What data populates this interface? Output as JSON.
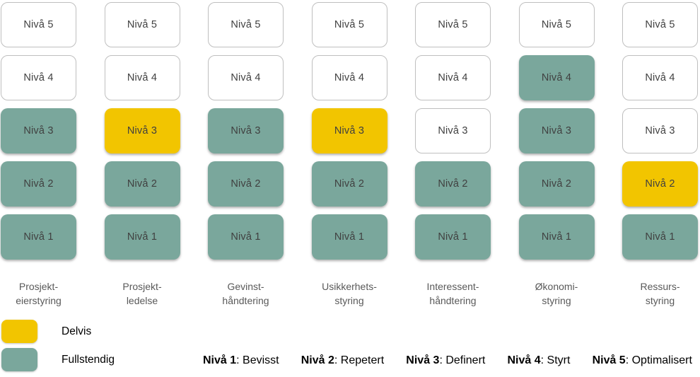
{
  "colors": {
    "delvis": "#F2C500",
    "fullstendig": "#7AA79C",
    "empty_box_border": "#BFBFBF",
    "box_text": "#404040",
    "column_label_text": "#595959"
  },
  "columns": [
    {
      "label_line1": "Prosjekt-",
      "label_line2": "eierstyring",
      "levels": [
        {
          "label": "Nivå 5",
          "status": "none"
        },
        {
          "label": "Nivå 4",
          "status": "none"
        },
        {
          "label": "Nivå 3",
          "status": "fullstendig"
        },
        {
          "label": "Nivå 2",
          "status": "fullstendig"
        },
        {
          "label": "Nivå 1",
          "status": "fullstendig"
        }
      ]
    },
    {
      "label_line1": "Prosjekt-",
      "label_line2": "ledelse",
      "levels": [
        {
          "label": "Nivå 5",
          "status": "none"
        },
        {
          "label": "Nivå 4",
          "status": "none"
        },
        {
          "label": "Nivå 3",
          "status": "delvis"
        },
        {
          "label": "Nivå 2",
          "status": "fullstendig"
        },
        {
          "label": "Nivå 1",
          "status": "fullstendig"
        }
      ]
    },
    {
      "label_line1": "Gevinst-",
      "label_line2": "håndtering",
      "levels": [
        {
          "label": "Nivå 5",
          "status": "none"
        },
        {
          "label": "Nivå 4",
          "status": "none"
        },
        {
          "label": "Nivå 3",
          "status": "fullstendig"
        },
        {
          "label": "Nivå 2",
          "status": "fullstendig"
        },
        {
          "label": "Nivå 1",
          "status": "fullstendig"
        }
      ]
    },
    {
      "label_line1": "Usikkerhets-",
      "label_line2": "styring",
      "levels": [
        {
          "label": "Nivå 5",
          "status": "none"
        },
        {
          "label": "Nivå 4",
          "status": "none"
        },
        {
          "label": "Nivå 3",
          "status": "delvis"
        },
        {
          "label": "Nivå 2",
          "status": "fullstendig"
        },
        {
          "label": "Nivå 1",
          "status": "fullstendig"
        }
      ]
    },
    {
      "label_line1": "Interessent-",
      "label_line2": "håndtering",
      "levels": [
        {
          "label": "Nivå 5",
          "status": "none"
        },
        {
          "label": "Nivå 4",
          "status": "none"
        },
        {
          "label": "Nivå 3",
          "status": "none"
        },
        {
          "label": "Nivå 2",
          "status": "fullstendig"
        },
        {
          "label": "Nivå 1",
          "status": "fullstendig"
        }
      ]
    },
    {
      "label_line1": "Økonomi-",
      "label_line2": "styring",
      "levels": [
        {
          "label": "Nivå 5",
          "status": "none"
        },
        {
          "label": "Nivå 4",
          "status": "fullstendig"
        },
        {
          "label": "Nivå 3",
          "status": "fullstendig"
        },
        {
          "label": "Nivå 2",
          "status": "fullstendig"
        },
        {
          "label": "Nivå 1",
          "status": "fullstendig"
        }
      ]
    },
    {
      "label_line1": "Ressurs-",
      "label_line2": "styring",
      "levels": [
        {
          "label": "Nivå 5",
          "status": "none"
        },
        {
          "label": "Nivå 4",
          "status": "none"
        },
        {
          "label": "Nivå 3",
          "status": "none"
        },
        {
          "label": "Nivå 2",
          "status": "delvis"
        },
        {
          "label": "Nivå 1",
          "status": "fullstendig"
        }
      ]
    }
  ],
  "legend": {
    "items": [
      {
        "label": "Delvis",
        "color": "#F2C500",
        "status": "delvis"
      },
      {
        "label": "Fullstendig",
        "color": "#7AA79C",
        "status": "fullstendig"
      }
    ]
  },
  "level_definitions": [
    {
      "level": "Nivå 1",
      "rest": ": Bevisst"
    },
    {
      "level": "Nivå 2",
      "rest": ": Repetert"
    },
    {
      "level": "Nivå 3",
      "rest": ": Definert"
    },
    {
      "level": "Nivå 4",
      "rest": ": Styrt"
    },
    {
      "level": "Nivå 5",
      "rest": ": Optimalisert"
    }
  ],
  "chart_data": {
    "type": "heatmap",
    "title": "",
    "categories": [
      "Prosjekteierstyring",
      "Prosjektledelse",
      "Gevinsthåndtering",
      "Usikkerhetsstyring",
      "Interessenthåndtering",
      "Økonomistyring",
      "Ressursstyring"
    ],
    "levels": [
      "Nivå 1",
      "Nivå 2",
      "Nivå 3",
      "Nivå 4",
      "Nivå 5"
    ],
    "level_names": {
      "Nivå 1": "Bevisst",
      "Nivå 2": "Repetert",
      "Nivå 3": "Definert",
      "Nivå 4": "Styrt",
      "Nivå 5": "Optimalisert"
    },
    "status_by_category_levels_1_to_5": {
      "Prosjekteierstyring": [
        "fullstendig",
        "fullstendig",
        "fullstendig",
        "none",
        "none"
      ],
      "Prosjektledelse": [
        "fullstendig",
        "fullstendig",
        "delvis",
        "none",
        "none"
      ],
      "Gevinsthåndtering": [
        "fullstendig",
        "fullstendig",
        "fullstendig",
        "none",
        "none"
      ],
      "Usikkerhetsstyring": [
        "fullstendig",
        "fullstendig",
        "delvis",
        "none",
        "none"
      ],
      "Interessenthåndtering": [
        "fullstendig",
        "fullstendig",
        "none",
        "none",
        "none"
      ],
      "Økonomistyring": [
        "fullstendig",
        "fullstendig",
        "fullstendig",
        "fullstendig",
        "none"
      ],
      "Ressursstyring": [
        "fullstendig",
        "delvis",
        "none",
        "none",
        "none"
      ]
    },
    "legend": {
      "Delvis": "#F2C500",
      "Fullstendig": "#7AA79C"
    },
    "legend_position": "bottom-left",
    "grid": false
  }
}
